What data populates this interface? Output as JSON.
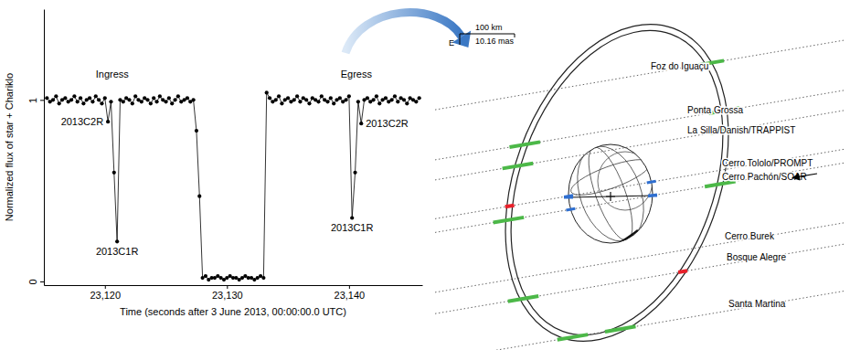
{
  "chart_data": {
    "type": "line",
    "marker": "circle",
    "color": "#000000",
    "x_label": "Time (seconds after 3 June 2013, 00:00:00.0 UTC)",
    "y_label": "Normalized flux of star + Chariklo",
    "x": [
      23115.25,
      23115.5,
      23115.75,
      23116,
      23116.25,
      23116.5,
      23116.75,
      23117,
      23117.25,
      23117.5,
      23117.75,
      23118,
      23118.25,
      23118.5,
      23118.75,
      23119,
      23119.25,
      23119.5,
      23119.75,
      23120,
      23120.25,
      23120.5,
      23120.75,
      23121,
      23121.25,
      23121.5,
      23121.75,
      23122,
      23122.25,
      23122.5,
      23122.75,
      23123,
      23123.25,
      23123.5,
      23123.75,
      23124,
      23124.25,
      23124.5,
      23124.75,
      23125,
      23125.25,
      23125.5,
      23125.75,
      23126,
      23126.25,
      23126.5,
      23126.75,
      23127,
      23127.25,
      23127.5,
      23127.75,
      23128,
      23128.25,
      23128.5,
      23128.75,
      23129,
      23129.25,
      23129.5,
      23129.75,
      23130,
      23130.25,
      23130.5,
      23130.75,
      23131,
      23131.25,
      23131.5,
      23131.75,
      23132,
      23132.25,
      23132.5,
      23132.75,
      23133,
      23133.25,
      23133.5,
      23133.75,
      23134,
      23134.25,
      23134.5,
      23134.75,
      23135,
      23135.25,
      23135.5,
      23135.75,
      23136,
      23136.25,
      23136.5,
      23136.75,
      23137,
      23137.25,
      23137.5,
      23137.75,
      23138,
      23138.25,
      23138.5,
      23138.75,
      23139,
      23139.25,
      23139.5,
      23139.75,
      23140,
      23140.25,
      23140.5,
      23140.75,
      23141,
      23141.25,
      23141.5,
      23141.75,
      23142,
      23142.25,
      23142.5,
      23142.75,
      23143,
      23143.25,
      23143.5,
      23143.75,
      23144,
      23144.25,
      23144.5,
      23144.75,
      23145,
      23145.25,
      23145.5,
      23145.75
    ],
    "values": [
      1.01,
      0.99,
      1.0,
      1.02,
      0.98,
      1.0,
      1.01,
      0.99,
      1.0,
      1.02,
      0.99,
      1.01,
      0.98,
      1.0,
      1.01,
      0.99,
      1.02,
      1.0,
      0.98,
      1.01,
      0.88,
      0.99,
      0.6,
      0.22,
      1.0,
      0.99,
      1.01,
      1.0,
      0.98,
      1.02,
      1.0,
      0.99,
      1.01,
      1.0,
      0.98,
      1.01,
      0.99,
      1.02,
      1.0,
      0.99,
      1.01,
      0.98,
      1.0,
      1.02,
      0.99,
      1.0,
      1.01,
      0.99,
      1.0,
      0.83,
      0.47,
      0.02,
      0.03,
      0.01,
      0.02,
      0.02,
      0.03,
      0.02,
      0.01,
      0.02,
      0.03,
      0.02,
      0.02,
      0.01,
      0.02,
      0.03,
      0.02,
      0.02,
      0.01,
      0.02,
      0.03,
      0.02,
      1.04,
      1.01,
      0.99,
      1.0,
      1.02,
      0.98,
      1.0,
      1.01,
      0.99,
      1.0,
      1.02,
      0.99,
      1.01,
      1.0,
      0.98,
      1.01,
      1.0,
      0.99,
      1.02,
      1.0,
      0.99,
      1.01,
      0.98,
      1.0,
      1.01,
      0.99,
      1.0,
      1.02,
      0.35,
      0.6,
      0.99,
      0.87,
      1.0,
      1.01,
      0.99,
      1.0,
      1.02,
      0.98,
      1.0,
      1.01,
      0.99,
      1.0,
      1.02,
      0.99,
      1.01,
      1.0,
      0.98,
      1.01,
      1.0,
      0.99,
      1.01
    ],
    "xlim": [
      23115,
      23146
    ],
    "xticks": [
      {
        "value": 23120,
        "label": "23,120"
      },
      {
        "value": 23130,
        "label": "23,130"
      },
      {
        "value": 23140,
        "label": "23,140"
      }
    ],
    "ylim": [
      -0.02,
      1.5
    ],
    "yticks": [
      0,
      1
    ],
    "annotations": [
      {
        "text": "Ingress",
        "x": 23120.6
      },
      {
        "text": "Egress",
        "x": 23140.6
      },
      {
        "text": "2013C2R",
        "x": 23120.25,
        "y": 0.88
      },
      {
        "text": "2013C1R",
        "x": 23121,
        "y": 0.22
      },
      {
        "text": "2013C2R",
        "x": 23141,
        "y": 0.87
      },
      {
        "text": "2013C1R",
        "x": 23140.25,
        "y": 0.35
      }
    ]
  },
  "diagram": {
    "scale_bar": {
      "distance": "100 km",
      "angle": "10.16 mas"
    },
    "compass": "E",
    "stations": [
      "Foz do Iguaçu",
      "Ponta Grossa",
      "La Silla/Danish/TRAPPIST",
      "Cerro Tololo/PROMPT",
      "Cerro Pachón/SOAR",
      "Cerro Burek",
      "Bosque Alegre",
      "Santa Martina"
    ]
  }
}
